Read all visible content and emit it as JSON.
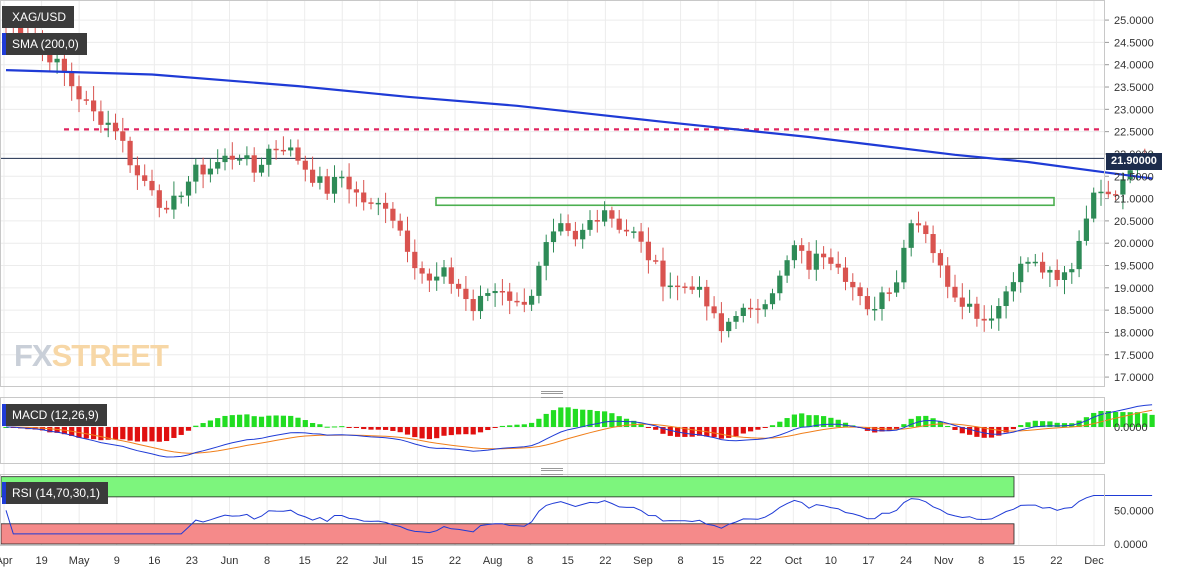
{
  "chart_data": [
    {
      "type": "candlestick",
      "title": "XAG/USD",
      "indicator": "SMA (200,0)",
      "current_price": "21.90000",
      "ylim": [
        16.8,
        25.45
      ],
      "yticks": [
        "25.0000",
        "24.5000",
        "24.0000",
        "23.5000",
        "23.0000",
        "22.5000",
        "22.0000",
        "21.5000",
        "21.0000",
        "20.5000",
        "20.0000",
        "19.5000",
        "19.0000",
        "18.5000",
        "18.0000",
        "17.5000",
        "17.0000"
      ],
      "ytick_values": [
        25.0,
        24.5,
        24.0,
        23.5,
        23.0,
        22.5,
        22.0,
        21.5,
        21.0,
        20.5,
        20.0,
        19.5,
        19.0,
        18.5,
        18.0,
        17.5,
        17.0
      ],
      "xticks": [
        "Apr",
        "19",
        "May",
        "9",
        "16",
        "23",
        "Jun",
        "8",
        "15",
        "22",
        "Jul",
        "15",
        "22",
        "Aug",
        "8",
        "15",
        "22",
        "Sep",
        "8",
        "15",
        "22",
        "Oct",
        "10",
        "17",
        "24",
        "Nov",
        "8",
        "15",
        "22",
        "Dec"
      ],
      "close_anchors": [
        [
          0,
          24.9
        ],
        [
          4,
          24.6
        ],
        [
          8,
          23.8
        ],
        [
          10,
          23.3
        ],
        [
          12,
          22.9
        ],
        [
          15,
          22.6
        ],
        [
          18,
          21.5
        ],
        [
          20,
          21.3
        ],
        [
          22,
          20.6
        ],
        [
          24,
          21.2
        ],
        [
          26,
          21.6
        ],
        [
          28,
          21.7
        ],
        [
          30,
          21.9
        ],
        [
          32,
          22.0
        ],
        [
          34,
          21.6
        ],
        [
          36,
          22.1
        ],
        [
          38,
          22.2
        ],
        [
          40,
          21.9
        ],
        [
          42,
          21.5
        ],
        [
          44,
          21.2
        ],
        [
          46,
          21.5
        ],
        [
          48,
          21.1
        ],
        [
          50,
          20.8
        ],
        [
          52,
          20.9
        ],
        [
          54,
          20.3
        ],
        [
          56,
          19.6
        ],
        [
          58,
          19.1
        ],
        [
          60,
          19.3
        ],
        [
          62,
          19.0
        ],
        [
          64,
          18.5
        ],
        [
          66,
          18.9
        ],
        [
          68,
          19.0
        ],
        [
          70,
          18.6
        ],
        [
          72,
          18.9
        ],
        [
          74,
          19.9
        ],
        [
          76,
          20.3
        ],
        [
          78,
          20.0
        ],
        [
          80,
          20.5
        ],
        [
          82,
          20.8
        ],
        [
          84,
          20.4
        ],
        [
          86,
          20.2
        ],
        [
          88,
          19.7
        ],
        [
          90,
          19.2
        ],
        [
          92,
          19.0
        ],
        [
          94,
          19.1
        ],
        [
          96,
          18.6
        ],
        [
          98,
          18.0
        ],
        [
          100,
          18.5
        ],
        [
          102,
          18.4
        ],
        [
          104,
          18.8
        ],
        [
          106,
          19.2
        ],
        [
          108,
          19.9
        ],
        [
          110,
          19.5
        ],
        [
          112,
          19.8
        ],
        [
          114,
          19.6
        ],
        [
          116,
          19.0
        ],
        [
          118,
          18.4
        ],
        [
          120,
          18.9
        ],
        [
          122,
          19.2
        ],
        [
          124,
          20.6
        ],
        [
          126,
          20.3
        ],
        [
          128,
          19.4
        ],
        [
          130,
          18.9
        ],
        [
          132,
          18.6
        ],
        [
          134,
          18.3
        ],
        [
          136,
          18.6
        ],
        [
          138,
          19.3
        ],
        [
          140,
          19.6
        ],
        [
          142,
          19.4
        ],
        [
          144,
          19.1
        ],
        [
          146,
          19.5
        ],
        [
          148,
          20.7
        ],
        [
          150,
          21.3
        ],
        [
          152,
          21.2
        ],
        [
          154,
          21.8
        ],
        [
          156,
          21.9
        ]
      ],
      "sma200": [
        [
          0,
          23.88
        ],
        [
          20,
          23.78
        ],
        [
          40,
          23.52
        ],
        [
          55,
          23.28
        ],
        [
          70,
          23.08
        ],
        [
          80,
          22.9
        ],
        [
          90,
          22.72
        ],
        [
          100,
          22.55
        ],
        [
          110,
          22.38
        ],
        [
          120,
          22.18
        ],
        [
          130,
          21.98
        ],
        [
          140,
          21.82
        ],
        [
          150,
          21.6
        ],
        [
          157,
          21.45
        ]
      ],
      "horizontal_level": 22.55,
      "resistance_zone": [
        20.85,
        21.02
      ]
    },
    {
      "type": "macd",
      "title": "MACD (12,26,9)",
      "yticks": [
        "0.0000"
      ]
    },
    {
      "type": "rsi",
      "title": "RSI (14,70,30,1)",
      "yticks": [
        "50.0000",
        "0.0000"
      ]
    }
  ],
  "colors": {
    "bull": "#2e8b57",
    "bear": "#d9534f",
    "sma": "#1f3bd6",
    "dotted_level": "#e0245e",
    "zone": "#4caf50",
    "macd_line": "#1f3bd6",
    "signal_line": "#f07f1b",
    "hist_pos": "#22dd22",
    "hist_neg": "#e01010",
    "rsi_over": "#7df57d",
    "rsi_under": "#f58a8a"
  },
  "logo": {
    "fx": "FX",
    "street": "STREET"
  }
}
